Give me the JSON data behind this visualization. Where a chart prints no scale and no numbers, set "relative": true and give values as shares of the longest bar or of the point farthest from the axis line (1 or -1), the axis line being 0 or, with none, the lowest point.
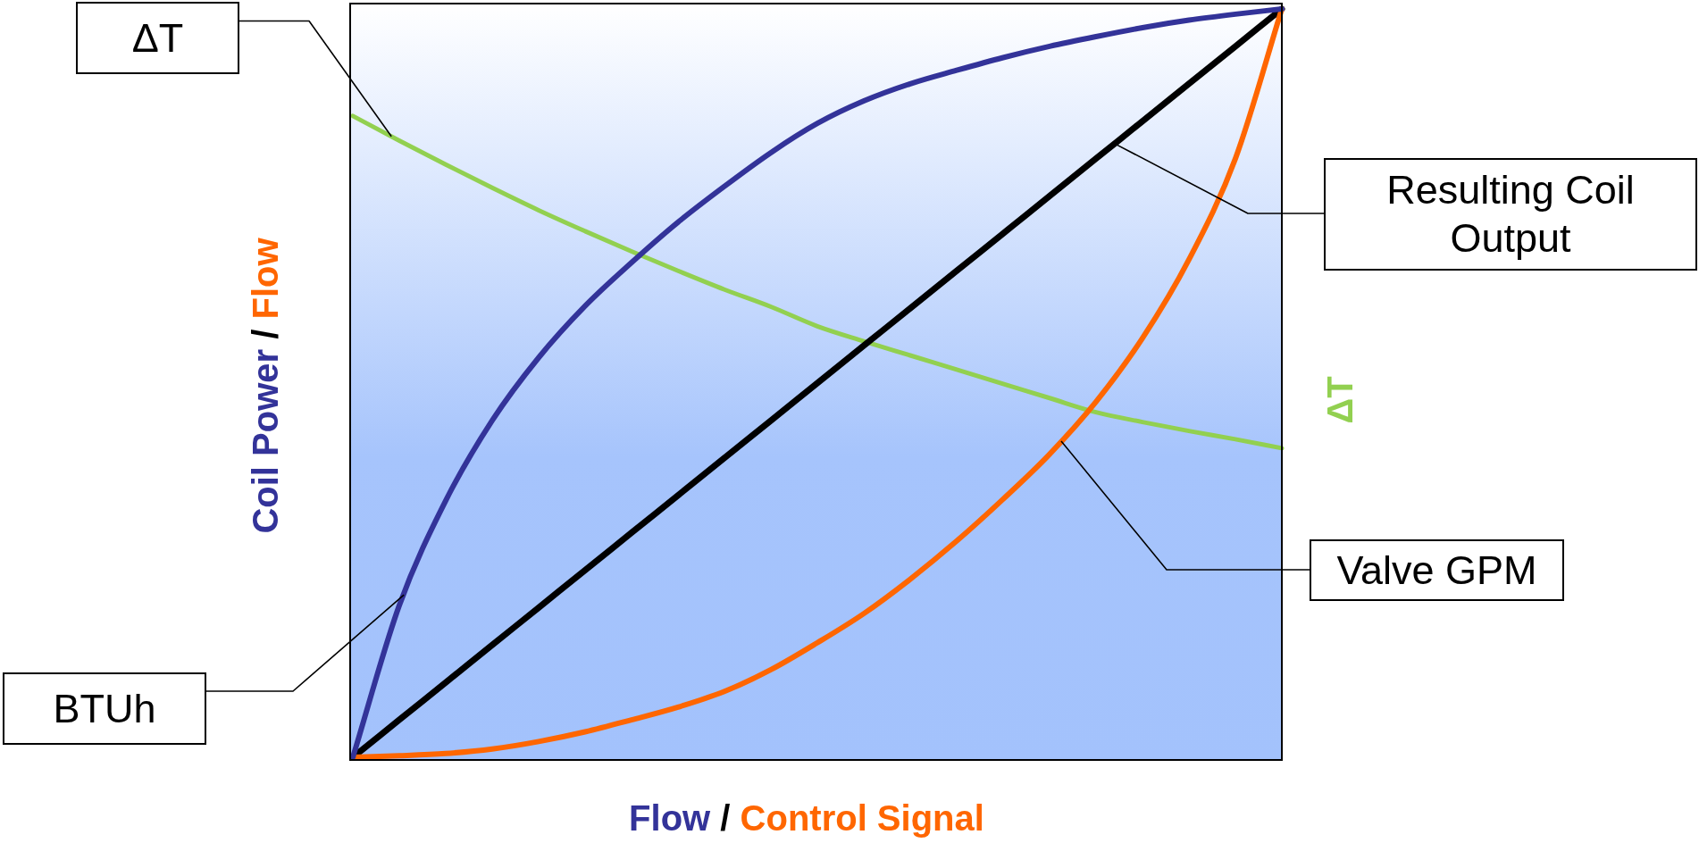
{
  "chart_data": {
    "type": "line",
    "relative": true,
    "marker": "none",
    "xlabel": "Flow / Control Signal",
    "ylabel": "Coil Power / Flow",
    "y2label": "ΔT",
    "annotations": [
      "ΔT"
    ],
    "categories": [
      null,
      null,
      null,
      null,
      null,
      null,
      null,
      null,
      null,
      null,
      null,
      null,
      null,
      null,
      null,
      null,
      null,
      null,
      null,
      null,
      null
    ],
    "series": [
      {
        "name": "BTUh",
        "color": "#333399",
        "values": [
          0,
          0.203,
          0.343,
          0.45,
          0.534,
          0.603,
          0.661,
          0.715,
          0.763,
          0.808,
          0.847,
          0.877,
          0.9,
          0.918,
          0.935,
          0.95,
          0.963,
          0.975,
          0.985,
          0.993,
          1
        ]
      },
      {
        "name": "Valve GPM",
        "color": "#ff6600",
        "values": [
          0,
          0.002,
          0.005,
          0.011,
          0.021,
          0.034,
          0.05,
          0.067,
          0.088,
          0.117,
          0.153,
          0.192,
          0.238,
          0.289,
          0.345,
          0.405,
          0.475,
          0.56,
          0.665,
          0.8,
          1
        ]
      },
      {
        "name": "Resulting Coil Output",
        "color": "#000000",
        "values": [
          0,
          0.05,
          0.1,
          0.15,
          0.2,
          0.25,
          0.3,
          0.35,
          0.4,
          0.45,
          0.5,
          0.55,
          0.6,
          0.65,
          0.7,
          0.75,
          0.8,
          0.85,
          0.9,
          0.95,
          1
        ]
      },
      {
        "color": "#92d050",
        "values": [
          0.857,
          0.824,
          0.792,
          0.761,
          0.731,
          0.703,
          0.676,
          0.65,
          0.625,
          0.602,
          0.576,
          0.556,
          0.537,
          0.518,
          0.499,
          0.48,
          0.461,
          0.448,
          0.436,
          0.425,
          0.413
        ]
      }
    ]
  }
}
